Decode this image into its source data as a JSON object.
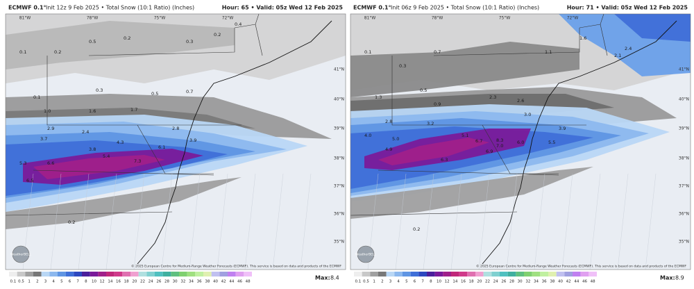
{
  "panels": [
    {
      "model": "ECMWF 0.1°",
      "subtitle": "Init 12z 9 Feb 2025 • Total Snow (10:1 Ratio) (Inches)",
      "hour_valid": "Hour: 65 • Valid: 05z Wed 12 Feb 2025",
      "lon_labels": [
        "81°W",
        "78°W",
        "75°W",
        "72°W"
      ],
      "lat_labels": [
        "41°N",
        "40°N",
        "39°N",
        "38°N",
        "37°N",
        "36°N",
        "35°N"
      ],
      "map_labels": [
        "0.1",
        "0.2",
        "0.5",
        "0.2",
        "0.3",
        "0.1",
        "0.3",
        "0.5",
        "0.7",
        "1.0",
        "1.6",
        "1.7",
        "2.9",
        "2.4",
        "3.7",
        "3.8",
        "5.3",
        "6.6",
        "6.5",
        "5.4",
        "4.3",
        "7.3",
        "6.1",
        "3.9",
        "2.8",
        "0.2",
        "0.2",
        "0.4"
      ],
      "logo": "WeatherBELL",
      "copyright": "© 2025 European Centre for Medium-Range Weather Forecasts (ECMWF). This service is based on data and products of the ECMWF",
      "max_label": "Max:",
      "max_value": "8.4"
    },
    {
      "model": "ECMWF 0.1°",
      "subtitle": "Init 06z 9 Feb 2025 • Total Snow (10:1 Ratio) (Inches)",
      "hour_valid": "Hour: 71 • Valid: 05z Wed 12 Feb 2025",
      "lon_labels": [
        "81°W",
        "78°W",
        "75°W",
        "72°W"
      ],
      "lat_labels": [
        "41°N",
        "40°N",
        "39°N",
        "38°N",
        "37°N",
        "36°N",
        "35°N"
      ],
      "map_labels": [
        "0.1",
        "0.3",
        "0.7",
        "1.1",
        "1.6",
        "2.4",
        "2.1",
        "0.5",
        "0.9",
        "1.3",
        "2.3",
        "2.6",
        "3.0",
        "2.8",
        "3.2",
        "4.0",
        "4.9",
        "5.0",
        "5.1",
        "6.7",
        "8.3",
        "6.9",
        "7.0",
        "6.3",
        "6.0",
        "5.5",
        "3.9",
        "0.2"
      ],
      "logo": "WeatherBELL",
      "copyright": "© 2025 European Centre for Medium-Range Weather Forecasts (ECMWF). This service is based on data and products of the ECMWF",
      "max_label": "Max:",
      "max_value": "8.9"
    }
  ],
  "colorbar": {
    "labels": [
      "0.1",
      "0.5",
      "1",
      "2",
      "3",
      "4",
      "5",
      "6",
      "7",
      "8",
      "10",
      "12",
      "14",
      "16",
      "18",
      "20",
      "22",
      "24",
      "26",
      "28",
      "30",
      "32",
      "34",
      "36",
      "38",
      "40",
      "42",
      "44",
      "46",
      "48"
    ],
    "colors": [
      "#eeeeee",
      "#c8c8c8",
      "#a0a0a0",
      "#787878",
      "#b9d7f5",
      "#8cb8ee",
      "#5f95e3",
      "#3f6fd8",
      "#2d48c0",
      "#4b1f9c",
      "#7a1a9a",
      "#a0208a",
      "#c0287a",
      "#d03a8a",
      "#e070b0",
      "#f0a0d0",
      "#b0e0e0",
      "#80d0d0",
      "#50c0c0",
      "#40b0a0",
      "#60c080",
      "#80d070",
      "#a0e080",
      "#c0f0a0",
      "#e0f0b0",
      "#c0c0f0",
      "#a0a0e0",
      "#c080f0",
      "#e0a0f0",
      "#f0c0f8"
    ]
  }
}
